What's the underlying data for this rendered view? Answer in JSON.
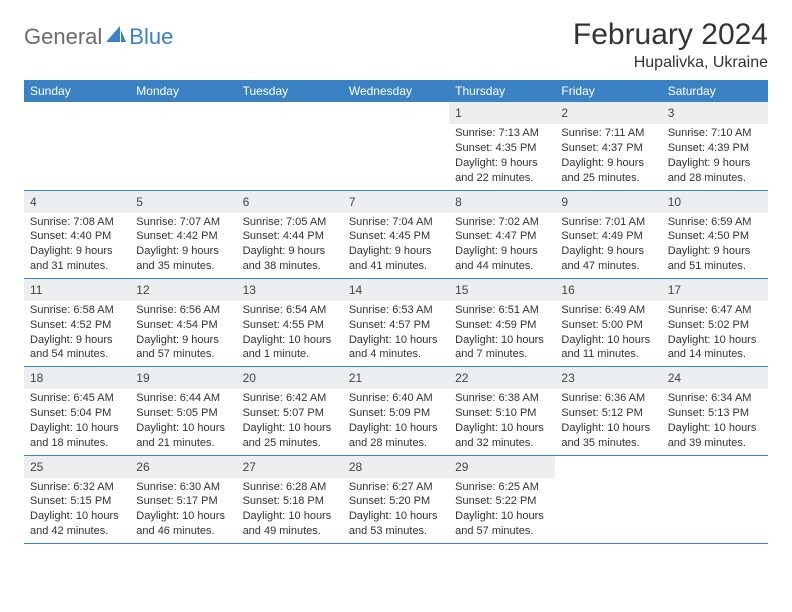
{
  "brand": {
    "part1": "General",
    "part2": "Blue"
  },
  "title": "February 2024",
  "location": "Hupalivka, Ukraine",
  "colors": {
    "header_bg": "#3b82c4",
    "header_text": "#ffffff",
    "daynum_bg": "#eceef0",
    "cell_border": "#3b82c4",
    "brand_gray": "#6b6b6b",
    "brand_blue": "#3b82c4"
  },
  "weekdays": [
    "Sunday",
    "Monday",
    "Tuesday",
    "Wednesday",
    "Thursday",
    "Friday",
    "Saturday"
  ],
  "weeks": [
    [
      null,
      null,
      null,
      null,
      {
        "n": "1",
        "sr": "Sunrise: 7:13 AM",
        "ss": "Sunset: 4:35 PM",
        "dl1": "Daylight: 9 hours",
        "dl2": "and 22 minutes."
      },
      {
        "n": "2",
        "sr": "Sunrise: 7:11 AM",
        "ss": "Sunset: 4:37 PM",
        "dl1": "Daylight: 9 hours",
        "dl2": "and 25 minutes."
      },
      {
        "n": "3",
        "sr": "Sunrise: 7:10 AM",
        "ss": "Sunset: 4:39 PM",
        "dl1": "Daylight: 9 hours",
        "dl2": "and 28 minutes."
      }
    ],
    [
      {
        "n": "4",
        "sr": "Sunrise: 7:08 AM",
        "ss": "Sunset: 4:40 PM",
        "dl1": "Daylight: 9 hours",
        "dl2": "and 31 minutes."
      },
      {
        "n": "5",
        "sr": "Sunrise: 7:07 AM",
        "ss": "Sunset: 4:42 PM",
        "dl1": "Daylight: 9 hours",
        "dl2": "and 35 minutes."
      },
      {
        "n": "6",
        "sr": "Sunrise: 7:05 AM",
        "ss": "Sunset: 4:44 PM",
        "dl1": "Daylight: 9 hours",
        "dl2": "and 38 minutes."
      },
      {
        "n": "7",
        "sr": "Sunrise: 7:04 AM",
        "ss": "Sunset: 4:45 PM",
        "dl1": "Daylight: 9 hours",
        "dl2": "and 41 minutes."
      },
      {
        "n": "8",
        "sr": "Sunrise: 7:02 AM",
        "ss": "Sunset: 4:47 PM",
        "dl1": "Daylight: 9 hours",
        "dl2": "and 44 minutes."
      },
      {
        "n": "9",
        "sr": "Sunrise: 7:01 AM",
        "ss": "Sunset: 4:49 PM",
        "dl1": "Daylight: 9 hours",
        "dl2": "and 47 minutes."
      },
      {
        "n": "10",
        "sr": "Sunrise: 6:59 AM",
        "ss": "Sunset: 4:50 PM",
        "dl1": "Daylight: 9 hours",
        "dl2": "and 51 minutes."
      }
    ],
    [
      {
        "n": "11",
        "sr": "Sunrise: 6:58 AM",
        "ss": "Sunset: 4:52 PM",
        "dl1": "Daylight: 9 hours",
        "dl2": "and 54 minutes."
      },
      {
        "n": "12",
        "sr": "Sunrise: 6:56 AM",
        "ss": "Sunset: 4:54 PM",
        "dl1": "Daylight: 9 hours",
        "dl2": "and 57 minutes."
      },
      {
        "n": "13",
        "sr": "Sunrise: 6:54 AM",
        "ss": "Sunset: 4:55 PM",
        "dl1": "Daylight: 10 hours",
        "dl2": "and 1 minute."
      },
      {
        "n": "14",
        "sr": "Sunrise: 6:53 AM",
        "ss": "Sunset: 4:57 PM",
        "dl1": "Daylight: 10 hours",
        "dl2": "and 4 minutes."
      },
      {
        "n": "15",
        "sr": "Sunrise: 6:51 AM",
        "ss": "Sunset: 4:59 PM",
        "dl1": "Daylight: 10 hours",
        "dl2": "and 7 minutes."
      },
      {
        "n": "16",
        "sr": "Sunrise: 6:49 AM",
        "ss": "Sunset: 5:00 PM",
        "dl1": "Daylight: 10 hours",
        "dl2": "and 11 minutes."
      },
      {
        "n": "17",
        "sr": "Sunrise: 6:47 AM",
        "ss": "Sunset: 5:02 PM",
        "dl1": "Daylight: 10 hours",
        "dl2": "and 14 minutes."
      }
    ],
    [
      {
        "n": "18",
        "sr": "Sunrise: 6:45 AM",
        "ss": "Sunset: 5:04 PM",
        "dl1": "Daylight: 10 hours",
        "dl2": "and 18 minutes."
      },
      {
        "n": "19",
        "sr": "Sunrise: 6:44 AM",
        "ss": "Sunset: 5:05 PM",
        "dl1": "Daylight: 10 hours",
        "dl2": "and 21 minutes."
      },
      {
        "n": "20",
        "sr": "Sunrise: 6:42 AM",
        "ss": "Sunset: 5:07 PM",
        "dl1": "Daylight: 10 hours",
        "dl2": "and 25 minutes."
      },
      {
        "n": "21",
        "sr": "Sunrise: 6:40 AM",
        "ss": "Sunset: 5:09 PM",
        "dl1": "Daylight: 10 hours",
        "dl2": "and 28 minutes."
      },
      {
        "n": "22",
        "sr": "Sunrise: 6:38 AM",
        "ss": "Sunset: 5:10 PM",
        "dl1": "Daylight: 10 hours",
        "dl2": "and 32 minutes."
      },
      {
        "n": "23",
        "sr": "Sunrise: 6:36 AM",
        "ss": "Sunset: 5:12 PM",
        "dl1": "Daylight: 10 hours",
        "dl2": "and 35 minutes."
      },
      {
        "n": "24",
        "sr": "Sunrise: 6:34 AM",
        "ss": "Sunset: 5:13 PM",
        "dl1": "Daylight: 10 hours",
        "dl2": "and 39 minutes."
      }
    ],
    [
      {
        "n": "25",
        "sr": "Sunrise: 6:32 AM",
        "ss": "Sunset: 5:15 PM",
        "dl1": "Daylight: 10 hours",
        "dl2": "and 42 minutes."
      },
      {
        "n": "26",
        "sr": "Sunrise: 6:30 AM",
        "ss": "Sunset: 5:17 PM",
        "dl1": "Daylight: 10 hours",
        "dl2": "and 46 minutes."
      },
      {
        "n": "27",
        "sr": "Sunrise: 6:28 AM",
        "ss": "Sunset: 5:18 PM",
        "dl1": "Daylight: 10 hours",
        "dl2": "and 49 minutes."
      },
      {
        "n": "28",
        "sr": "Sunrise: 6:27 AM",
        "ss": "Sunset: 5:20 PM",
        "dl1": "Daylight: 10 hours",
        "dl2": "and 53 minutes."
      },
      {
        "n": "29",
        "sr": "Sunrise: 6:25 AM",
        "ss": "Sunset: 5:22 PM",
        "dl1": "Daylight: 10 hours",
        "dl2": "and 57 minutes."
      },
      null,
      null
    ]
  ]
}
